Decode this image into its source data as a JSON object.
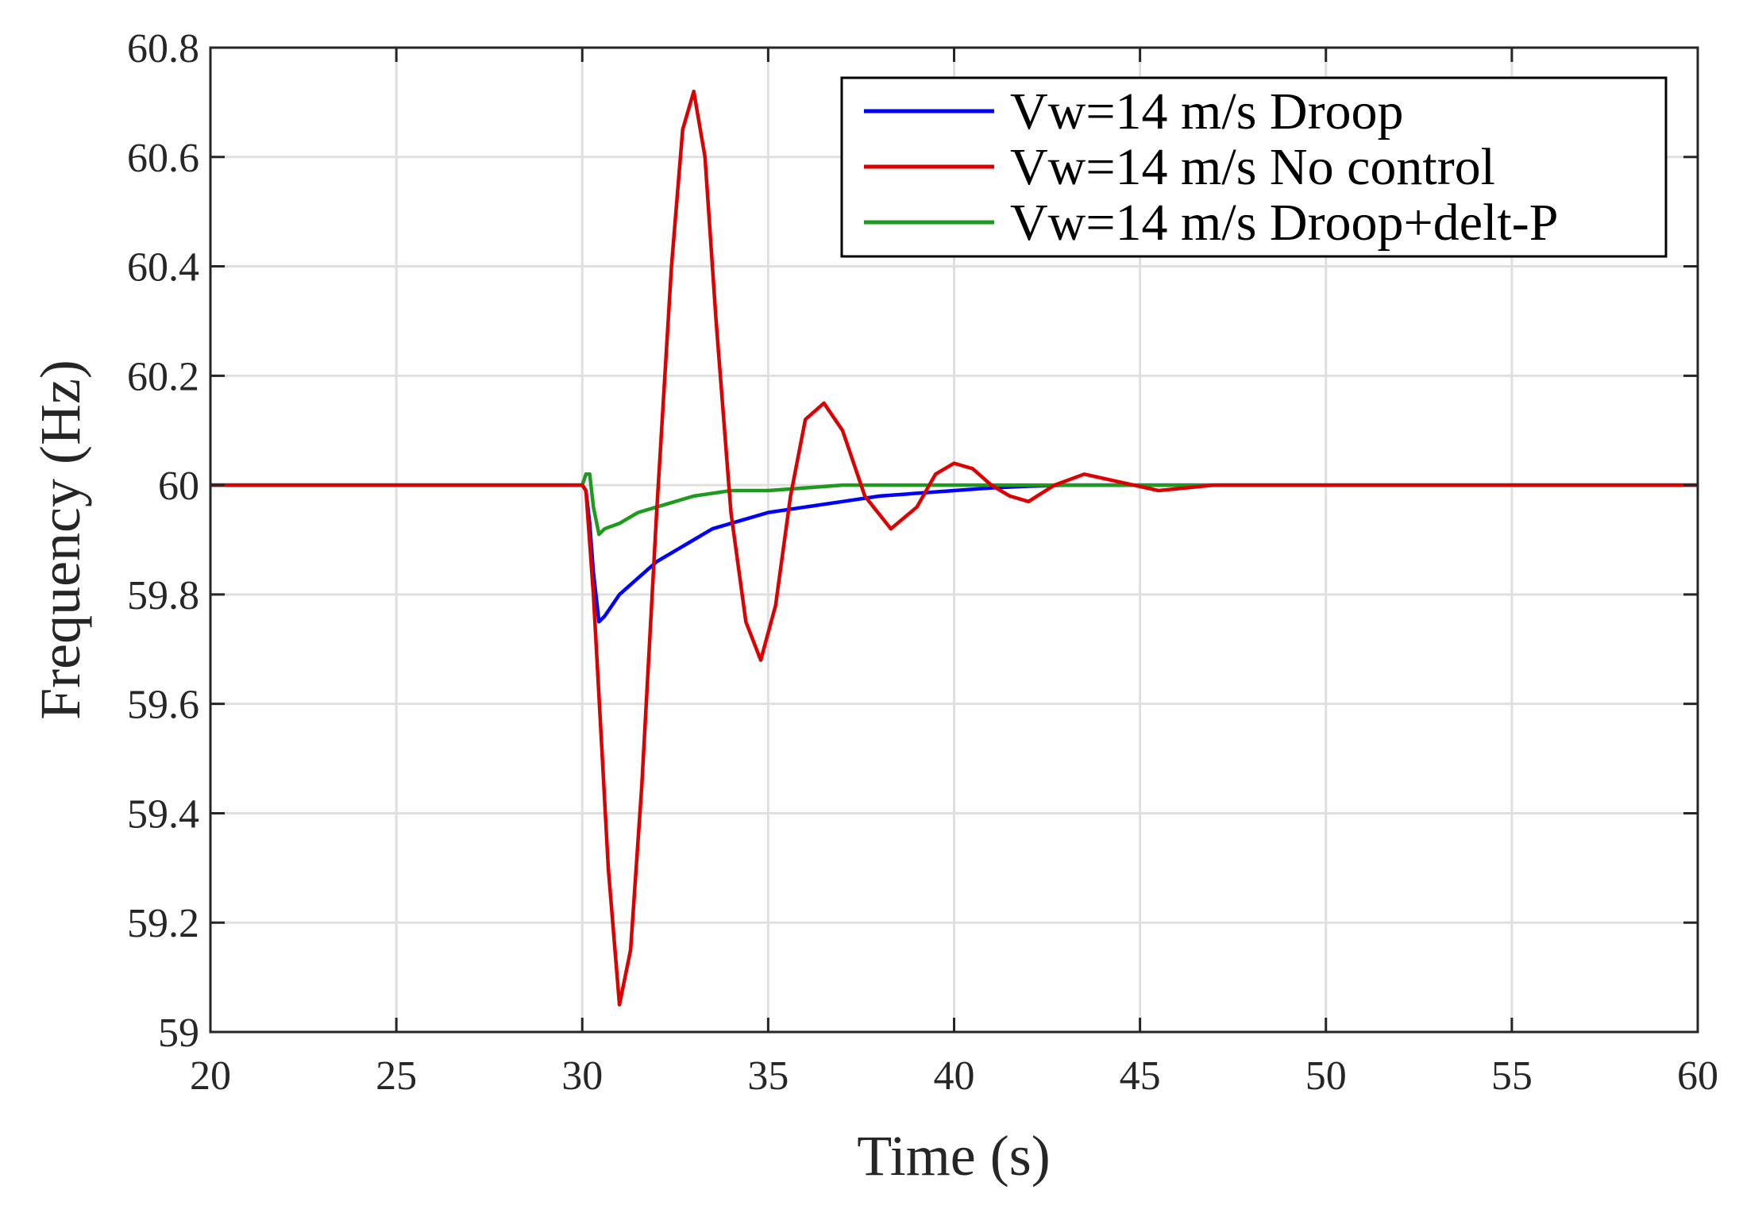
{
  "chart_data": {
    "type": "line",
    "title": "",
    "xlabel": "Time (s)",
    "ylabel": "Frequency (Hz)",
    "xlim": [
      20,
      60
    ],
    "ylim": [
      59,
      60.8
    ],
    "xticks": [
      20,
      25,
      30,
      35,
      40,
      45,
      50,
      55,
      60
    ],
    "yticks": [
      59,
      59.2,
      59.4,
      59.6,
      59.8,
      60,
      60.2,
      60.4,
      60.6,
      60.8
    ],
    "xtick_labels": [
      "20",
      "25",
      "30",
      "35",
      "40",
      "45",
      "50",
      "55",
      "60"
    ],
    "ytick_labels": [
      "59",
      "59.2",
      "59.4",
      "59.6",
      "59.8",
      "60",
      "60.2",
      "60.4",
      "60.6",
      "60.8"
    ],
    "grid": true,
    "legend_position": "top-right",
    "series": [
      {
        "name": "Vw=14 m/s Droop",
        "color": "#0000ff",
        "x": [
          20,
          30,
          30.1,
          30.2,
          30.3,
          30.45,
          30.6,
          30.8,
          31,
          31.5,
          32,
          32.5,
          33,
          33.5,
          34,
          35,
          36,
          37,
          38,
          39,
          40,
          41,
          42,
          43,
          45,
          50,
          55,
          60
        ],
        "y": [
          60,
          60,
          59.99,
          59.93,
          59.84,
          59.75,
          59.76,
          59.78,
          59.8,
          59.83,
          59.86,
          59.88,
          59.9,
          59.92,
          59.93,
          59.95,
          59.96,
          59.97,
          59.98,
          59.985,
          59.99,
          59.995,
          59.998,
          60,
          60,
          60,
          60,
          60
        ]
      },
      {
        "name": "Vw=14 m/s No control",
        "color": "#dd0000",
        "x": [
          20,
          30,
          30.1,
          30.3,
          30.5,
          30.7,
          31,
          31.3,
          31.6,
          32,
          32.4,
          32.7,
          33,
          33.3,
          33.6,
          34,
          34.4,
          34.8,
          35.2,
          35.6,
          36,
          36.5,
          37,
          37.6,
          38.3,
          39,
          39.5,
          40,
          40.5,
          41,
          41.5,
          42,
          42.7,
          43.5,
          44.5,
          45.5,
          47,
          50,
          55,
          60
        ],
        "y": [
          60,
          60,
          59.99,
          59.8,
          59.55,
          59.3,
          59.05,
          59.15,
          59.45,
          59.95,
          60.4,
          60.65,
          60.72,
          60.6,
          60.3,
          59.95,
          59.75,
          59.68,
          59.78,
          59.98,
          60.12,
          60.15,
          60.1,
          59.98,
          59.92,
          59.96,
          60.02,
          60.04,
          60.03,
          60,
          59.98,
          59.97,
          60,
          60.02,
          60.005,
          59.99,
          60,
          60,
          60,
          60
        ]
      },
      {
        "name": "Vw=14 m/s Droop+delt-P",
        "color": "#1e9b1e",
        "x": [
          20,
          30,
          30.1,
          30.2,
          30.3,
          30.45,
          30.6,
          31,
          31.5,
          32,
          33,
          34,
          35,
          36,
          37,
          38,
          40,
          42,
          45,
          50,
          55,
          60
        ],
        "y": [
          60,
          60,
          60.02,
          60.02,
          59.96,
          59.91,
          59.92,
          59.93,
          59.95,
          59.96,
          59.98,
          59.99,
          59.99,
          59.995,
          60,
          60,
          60,
          60,
          60,
          60,
          60,
          60
        ]
      }
    ]
  }
}
